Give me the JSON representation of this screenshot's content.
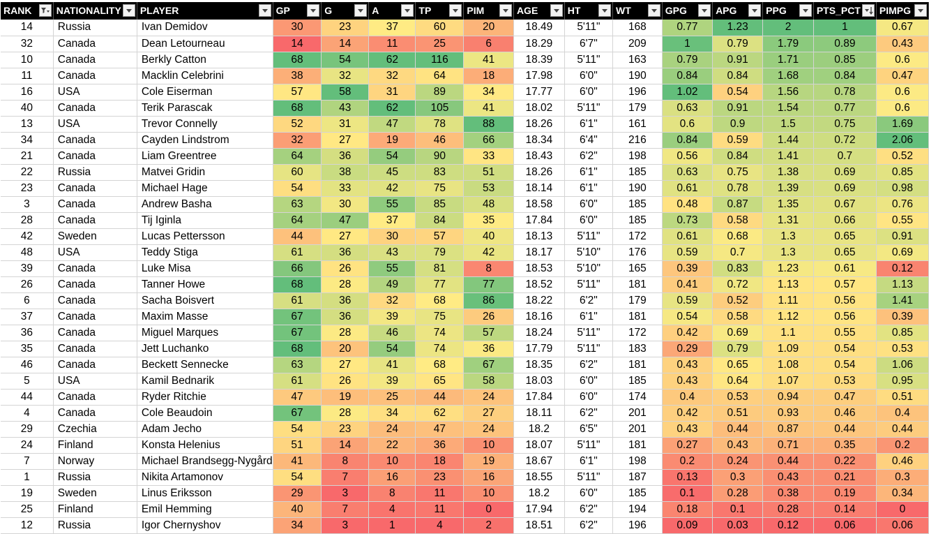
{
  "columns": [
    {
      "key": "rank",
      "label": "RANK",
      "width": 78,
      "filter": "sorted-filter"
    },
    {
      "key": "nat",
      "label": "NATIONALITY",
      "width": 84,
      "filter": "dropdown"
    },
    {
      "key": "player",
      "label": "PLAYER",
      "width": 155,
      "filter": "dropdown"
    },
    {
      "key": "gp",
      "label": "GP",
      "width": 77,
      "filter": "dropdown"
    },
    {
      "key": "g",
      "label": "G",
      "width": 78,
      "filter": "dropdown"
    },
    {
      "key": "a",
      "label": "A",
      "width": 77,
      "filter": "dropdown"
    },
    {
      "key": "tp",
      "label": "TP",
      "width": 77,
      "filter": "dropdown"
    },
    {
      "key": "pim",
      "label": "PIM",
      "width": 78,
      "filter": "dropdown"
    },
    {
      "key": "age",
      "label": "AGE",
      "width": 78,
      "filter": "dropdown"
    },
    {
      "key": "ht",
      "label": "HT",
      "width": 77,
      "filter": "dropdown"
    },
    {
      "key": "wt",
      "label": "WT",
      "width": 78,
      "filter": "dropdown"
    },
    {
      "key": "gpg",
      "label": "GPG",
      "width": 77,
      "filter": "dropdown"
    },
    {
      "key": "apg",
      "label": "APG",
      "width": 77,
      "filter": "dropdown"
    },
    {
      "key": "ppg",
      "label": "PPG",
      "width": 78,
      "filter": "dropdown"
    },
    {
      "key": "pts",
      "label": "PTS_PCT",
      "width": 85,
      "filter": "sorted-desc"
    },
    {
      "key": "pimpg",
      "label": "PIMPG",
      "width": 76,
      "filter": "dropdown"
    }
  ],
  "heat_columns": [
    "gp",
    "g",
    "a",
    "tp",
    "pim",
    "gpg",
    "apg",
    "ppg",
    "pts",
    "pimpg"
  ],
  "colors": {
    "low": "#F8696B",
    "mid": "#FFEB84",
    "high": "#63BE7B",
    "header_bg": "#000000",
    "header_text": "#FFFFFF"
  },
  "rows": [
    {
      "rank": 14,
      "nat": "Russia",
      "player": "Ivan Demidov",
      "gp": 30,
      "g": 23,
      "a": 37,
      "tp": 60,
      "pim": 20,
      "age": "18.49",
      "ht": "5'11\"",
      "wt": 168,
      "gpg": 0.77,
      "apg": 1.23,
      "ppg": 2,
      "pts": 1,
      "pimpg": 0.67
    },
    {
      "rank": 32,
      "nat": "Canada",
      "player": "Dean Letourneau",
      "gp": 14,
      "g": 14,
      "a": 11,
      "tp": 25,
      "pim": 6,
      "age": "18.29",
      "ht": "6'7\"",
      "wt": 209,
      "gpg": 1,
      "apg": 0.79,
      "ppg": 1.79,
      "pts": 0.89,
      "pimpg": 0.43
    },
    {
      "rank": 10,
      "nat": "Canada",
      "player": "Berkly Catton",
      "gp": 68,
      "g": 54,
      "a": 62,
      "tp": 116,
      "pim": 41,
      "age": "18.39",
      "ht": "5'11\"",
      "wt": 163,
      "gpg": 0.79,
      "apg": 0.91,
      "ppg": 1.71,
      "pts": 0.85,
      "pimpg": 0.6
    },
    {
      "rank": 11,
      "nat": "Canada",
      "player": "Macklin Celebrini",
      "gp": 38,
      "g": 32,
      "a": 32,
      "tp": 64,
      "pim": 18,
      "age": "17.98",
      "ht": "6'0\"",
      "wt": 190,
      "gpg": 0.84,
      "apg": 0.84,
      "ppg": 1.68,
      "pts": 0.84,
      "pimpg": 0.47
    },
    {
      "rank": 16,
      "nat": "USA",
      "player": "Cole Eiserman",
      "gp": 57,
      "g": 58,
      "a": 31,
      "tp": 89,
      "pim": 34,
      "age": "17.77",
      "ht": "6'0\"",
      "wt": 196,
      "gpg": 1.02,
      "apg": 0.54,
      "ppg": 1.56,
      "pts": 0.78,
      "pimpg": 0.6
    },
    {
      "rank": 40,
      "nat": "Canada",
      "player": "Terik Parascak",
      "gp": 68,
      "g": 43,
      "a": 62,
      "tp": 105,
      "pim": 41,
      "age": "18.02",
      "ht": "5'11\"",
      "wt": 179,
      "gpg": 0.63,
      "apg": 0.91,
      "ppg": 1.54,
      "pts": 0.77,
      "pimpg": 0.6
    },
    {
      "rank": 13,
      "nat": "USA",
      "player": "Trevor Connelly",
      "gp": 52,
      "g": 31,
      "a": 47,
      "tp": 78,
      "pim": 88,
      "age": "18.26",
      "ht": "6'1\"",
      "wt": 161,
      "gpg": 0.6,
      "apg": 0.9,
      "ppg": 1.5,
      "pts": 0.75,
      "pimpg": 1.69
    },
    {
      "rank": 34,
      "nat": "Canada",
      "player": "Cayden Lindstrom",
      "gp": 32,
      "g": 27,
      "a": 19,
      "tp": 46,
      "pim": 66,
      "age": "18.34",
      "ht": "6'4\"",
      "wt": 216,
      "gpg": 0.84,
      "apg": 0.59,
      "ppg": 1.44,
      "pts": 0.72,
      "pimpg": 2.06
    },
    {
      "rank": 21,
      "nat": "Canada",
      "player": "Liam Greentree",
      "gp": 64,
      "g": 36,
      "a": 54,
      "tp": 90,
      "pim": 33,
      "age": "18.43",
      "ht": "6'2\"",
      "wt": 198,
      "gpg": 0.56,
      "apg": 0.84,
      "ppg": 1.41,
      "pts": 0.7,
      "pimpg": 0.52
    },
    {
      "rank": 22,
      "nat": "Russia",
      "player": "Matvei Gridin",
      "gp": 60,
      "g": 38,
      "a": 45,
      "tp": 83,
      "pim": 51,
      "age": "18.26",
      "ht": "6'1\"",
      "wt": 185,
      "gpg": 0.63,
      "apg": 0.75,
      "ppg": 1.38,
      "pts": 0.69,
      "pimpg": 0.85
    },
    {
      "rank": 23,
      "nat": "Canada",
      "player": "Michael Hage",
      "gp": 54,
      "g": 33,
      "a": 42,
      "tp": 75,
      "pim": 53,
      "age": "18.14",
      "ht": "6'1\"",
      "wt": 190,
      "gpg": 0.61,
      "apg": 0.78,
      "ppg": 1.39,
      "pts": 0.69,
      "pimpg": 0.98
    },
    {
      "rank": 3,
      "nat": "Canada",
      "player": "Andrew Basha",
      "gp": 63,
      "g": 30,
      "a": 55,
      "tp": 85,
      "pim": 48,
      "age": "18.58",
      "ht": "6'0\"",
      "wt": 185,
      "gpg": 0.48,
      "apg": 0.87,
      "ppg": 1.35,
      "pts": 0.67,
      "pimpg": 0.76
    },
    {
      "rank": 28,
      "nat": "Canada",
      "player": "Tij Iginla",
      "gp": 64,
      "g": 47,
      "a": 37,
      "tp": 84,
      "pim": 35,
      "age": "17.84",
      "ht": "6'0\"",
      "wt": 185,
      "gpg": 0.73,
      "apg": 0.58,
      "ppg": 1.31,
      "pts": 0.66,
      "pimpg": 0.55
    },
    {
      "rank": 42,
      "nat": "Sweden",
      "player": "Lucas Pettersson",
      "gp": 44,
      "g": 27,
      "a": 30,
      "tp": 57,
      "pim": 40,
      "age": "18.13",
      "ht": "5'11\"",
      "wt": 172,
      "gpg": 0.61,
      "apg": 0.68,
      "ppg": 1.3,
      "pts": 0.65,
      "pimpg": 0.91
    },
    {
      "rank": 48,
      "nat": "USA",
      "player": "Teddy Stiga",
      "gp": 61,
      "g": 36,
      "a": 43,
      "tp": 79,
      "pim": 42,
      "age": "18.17",
      "ht": "5'10\"",
      "wt": 176,
      "gpg": 0.59,
      "apg": 0.7,
      "ppg": 1.3,
      "pts": 0.65,
      "pimpg": 0.69
    },
    {
      "rank": 39,
      "nat": "Canada",
      "player": "Luke Misa",
      "gp": 66,
      "g": 26,
      "a": 55,
      "tp": 81,
      "pim": 8,
      "age": "18.53",
      "ht": "5'10\"",
      "wt": 165,
      "gpg": 0.39,
      "apg": 0.83,
      "ppg": 1.23,
      "pts": 0.61,
      "pimpg": 0.12
    },
    {
      "rank": 26,
      "nat": "Canada",
      "player": "Tanner Howe",
      "gp": 68,
      "g": 28,
      "a": 49,
      "tp": 77,
      "pim": 77,
      "age": "18.52",
      "ht": "5'11\"",
      "wt": 181,
      "gpg": 0.41,
      "apg": 0.72,
      "ppg": 1.13,
      "pts": 0.57,
      "pimpg": 1.13
    },
    {
      "rank": 6,
      "nat": "Canada",
      "player": "Sacha Boisvert",
      "gp": 61,
      "g": 36,
      "a": 32,
      "tp": 68,
      "pim": 86,
      "age": "18.22",
      "ht": "6'2\"",
      "wt": 179,
      "gpg": 0.59,
      "apg": 0.52,
      "ppg": 1.11,
      "pts": 0.56,
      "pimpg": 1.41
    },
    {
      "rank": 37,
      "nat": "Canada",
      "player": "Maxim Masse",
      "gp": 67,
      "g": 36,
      "a": 39,
      "tp": 75,
      "pim": 26,
      "age": "18.16",
      "ht": "6'1\"",
      "wt": 181,
      "gpg": 0.54,
      "apg": 0.58,
      "ppg": 1.12,
      "pts": 0.56,
      "pimpg": 0.39
    },
    {
      "rank": 36,
      "nat": "Canada",
      "player": "Miguel Marques",
      "gp": 67,
      "g": 28,
      "a": 46,
      "tp": 74,
      "pim": 57,
      "age": "18.24",
      "ht": "5'11\"",
      "wt": 172,
      "gpg": 0.42,
      "apg": 0.69,
      "ppg": 1.1,
      "pts": 0.55,
      "pimpg": 0.85
    },
    {
      "rank": 35,
      "nat": "Canada",
      "player": "Jett Luchanko",
      "gp": 68,
      "g": 20,
      "a": 54,
      "tp": 74,
      "pim": 36,
      "age": "17.79",
      "ht": "5'11\"",
      "wt": 183,
      "gpg": 0.29,
      "apg": 0.79,
      "ppg": 1.09,
      "pts": 0.54,
      "pimpg": 0.53
    },
    {
      "rank": 46,
      "nat": "Canada",
      "player": "Beckett Sennecke",
      "gp": 63,
      "g": 27,
      "a": 41,
      "tp": 68,
      "pim": 67,
      "age": "18.35",
      "ht": "6'2\"",
      "wt": 181,
      "gpg": 0.43,
      "apg": 0.65,
      "ppg": 1.08,
      "pts": 0.54,
      "pimpg": 1.06
    },
    {
      "rank": 5,
      "nat": "USA",
      "player": "Kamil Bednarik",
      "gp": 61,
      "g": 26,
      "a": 39,
      "tp": 65,
      "pim": 58,
      "age": "18.03",
      "ht": "6'0\"",
      "wt": 185,
      "gpg": 0.43,
      "apg": 0.64,
      "ppg": 1.07,
      "pts": 0.53,
      "pimpg": 0.95
    },
    {
      "rank": 44,
      "nat": "Canada",
      "player": "Ryder Ritchie",
      "gp": 47,
      "g": 19,
      "a": 25,
      "tp": 44,
      "pim": 24,
      "age": "17.84",
      "ht": "6'0\"",
      "wt": 174,
      "gpg": 0.4,
      "apg": 0.53,
      "ppg": 0.94,
      "pts": 0.47,
      "pimpg": 0.51
    },
    {
      "rank": 4,
      "nat": "Canada",
      "player": "Cole Beaudoin",
      "gp": 67,
      "g": 28,
      "a": 34,
      "tp": 62,
      "pim": 27,
      "age": "18.11",
      "ht": "6'2\"",
      "wt": 201,
      "gpg": 0.42,
      "apg": 0.51,
      "ppg": 0.93,
      "pts": 0.46,
      "pimpg": 0.4
    },
    {
      "rank": 29,
      "nat": "Czechia",
      "player": "Adam Jecho",
      "gp": 54,
      "g": 23,
      "a": 24,
      "tp": 47,
      "pim": 24,
      "age": "18.2",
      "ht": "6'5\"",
      "wt": 201,
      "gpg": 0.43,
      "apg": 0.44,
      "ppg": 0.87,
      "pts": 0.44,
      "pimpg": 0.44
    },
    {
      "rank": 24,
      "nat": "Finland",
      "player": "Konsta Helenius",
      "gp": 51,
      "g": 14,
      "a": 22,
      "tp": 36,
      "pim": 10,
      "age": "18.07",
      "ht": "5'11\"",
      "wt": 181,
      "gpg": 0.27,
      "apg": 0.43,
      "ppg": 0.71,
      "pts": 0.35,
      "pimpg": 0.2
    },
    {
      "rank": 7,
      "nat": "Norway",
      "player": "Michael Brandsegg-Nygård",
      "gp": 41,
      "g": 8,
      "a": 10,
      "tp": 18,
      "pim": 19,
      "age": "18.67",
      "ht": "6'1\"",
      "wt": 198,
      "gpg": 0.2,
      "apg": 0.24,
      "ppg": 0.44,
      "pts": 0.22,
      "pimpg": 0.46
    },
    {
      "rank": 1,
      "nat": "Russia",
      "player": "Nikita Artamonov",
      "gp": 54,
      "g": 7,
      "a": 16,
      "tp": 23,
      "pim": 16,
      "age": "18.55",
      "ht": "5'11\"",
      "wt": 187,
      "gpg": 0.13,
      "apg": 0.3,
      "ppg": 0.43,
      "pts": 0.21,
      "pimpg": 0.3
    },
    {
      "rank": 19,
      "nat": "Sweden",
      "player": "Linus Eriksson",
      "gp": 29,
      "g": 3,
      "a": 8,
      "tp": 11,
      "pim": 10,
      "age": "18.2",
      "ht": "6'0\"",
      "wt": 185,
      "gpg": 0.1,
      "apg": 0.28,
      "ppg": 0.38,
      "pts": 0.19,
      "pimpg": 0.34
    },
    {
      "rank": 25,
      "nat": "Finland",
      "player": "Emil Hemming",
      "gp": 40,
      "g": 7,
      "a": 4,
      "tp": 11,
      "pim": 0,
      "age": "17.94",
      "ht": "6'2\"",
      "wt": 194,
      "gpg": 0.18,
      "apg": 0.1,
      "ppg": 0.28,
      "pts": 0.14,
      "pimpg": 0
    },
    {
      "rank": 12,
      "nat": "Russia",
      "player": "Igor Chernyshov",
      "gp": 34,
      "g": 3,
      "a": 1,
      "tp": 4,
      "pim": 2,
      "age": "18.51",
      "ht": "6'2\"",
      "wt": 196,
      "gpg": 0.09,
      "apg": 0.03,
      "ppg": 0.12,
      "pts": 0.06,
      "pimpg": 0.06
    }
  ]
}
